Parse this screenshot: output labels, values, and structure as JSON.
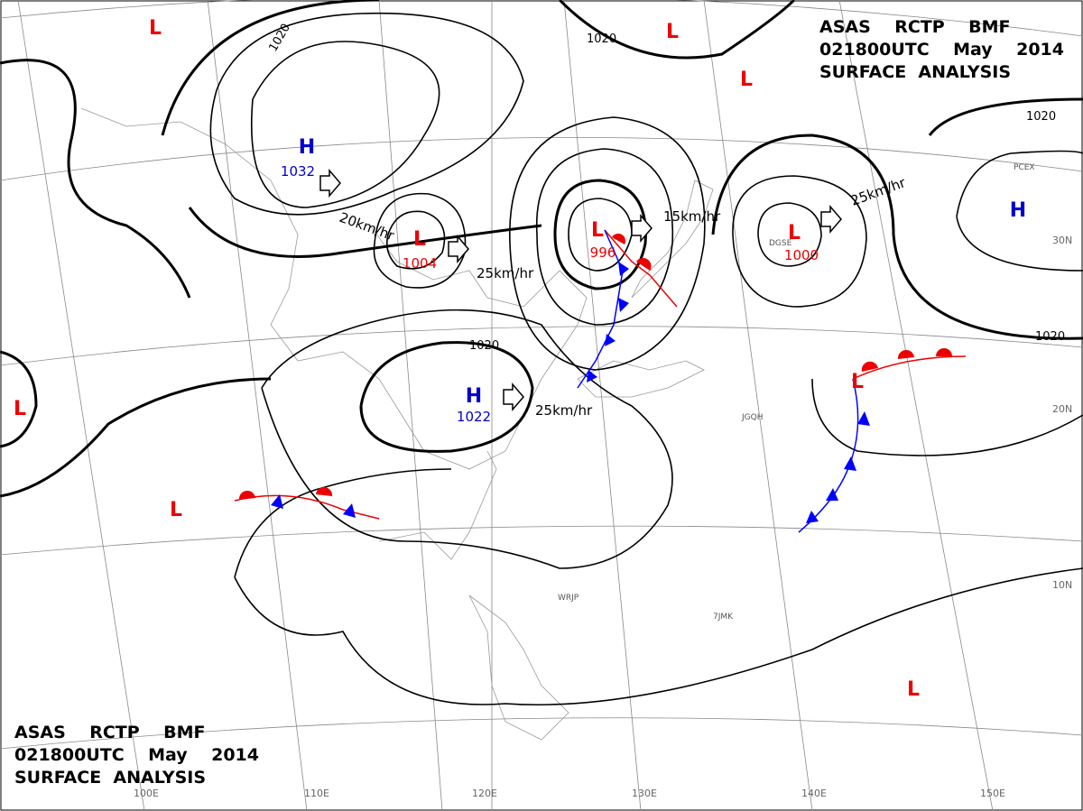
{
  "header": {
    "lines": [
      "ASAS    RCTP    BMF",
      "021800UTC    May    2014",
      "SURFACE  ANALYSIS"
    ]
  },
  "systems": [
    {
      "symbol": "H",
      "pressure": 1032
    },
    {
      "symbol": "L",
      "pressure": 1004
    },
    {
      "symbol": "L",
      "pressure": 996
    },
    {
      "symbol": "L",
      "pressure": 1000
    },
    {
      "symbol": "H",
      "pressure": 1022
    },
    {
      "symbol": "H"
    },
    {
      "symbol": "L"
    },
    {
      "symbol": "L"
    },
    {
      "symbol": "L"
    },
    {
      "symbol": "L"
    },
    {
      "symbol": "L"
    },
    {
      "symbol": "L"
    },
    {
      "symbol": "L"
    }
  ],
  "motions": [
    "20km/hr",
    "25km/hr",
    "15km/hr",
    "25km/hr",
    "25km/hr"
  ],
  "isobar_labels": [
    "1020",
    "1020",
    "1020",
    "1020",
    "1020"
  ],
  "longitudes": [
    "100E",
    "110E",
    "120E",
    "130E",
    "140E",
    "150E"
  ],
  "latitudes": [
    "30N",
    "20N",
    "10N"
  ],
  "stations": [
    "WRJP",
    "JGQH",
    "PCEX",
    "DGSE",
    "7JMK"
  ]
}
